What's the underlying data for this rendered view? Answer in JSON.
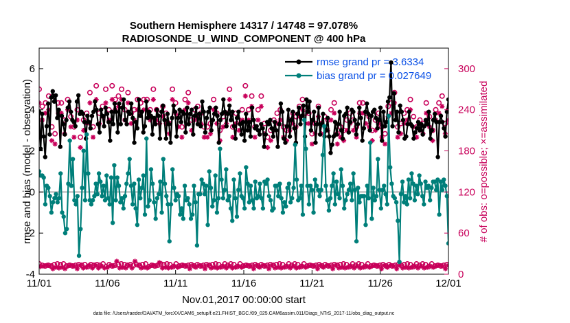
{
  "chart_data": {
    "type": "line",
    "title_line1": "Southern Hemisphere 14317 / 14748 = 97.078%",
    "title_line2": "RADIOSONDE_U_WIND_COMPONENT @ 400 hPa",
    "xlabel": "Nov.01,2017 00:00:00 start",
    "ylabel_left": "rmse and bias (model - observation)",
    "ylabel_right": "# of obs: o=possible; ×=assimilated",
    "footer": "data file: /Users/raeder/DAI/ATM_forcXX/CAM6_setup/f.e21.FHIST_BGC.f09_025.CAM6assim.011/Diags_NTrS_2017-11/obs_diag_output.nc",
    "x_range_days": [
      0,
      30
    ],
    "x_ticks": [
      0,
      5,
      10,
      15,
      20,
      25,
      30
    ],
    "x_tick_labels": [
      "11/01",
      "11/06",
      "11/11",
      "11/16",
      "11/21",
      "11/26",
      "12/01"
    ],
    "ylim_left": [
      -4,
      7
    ],
    "y_ticks_left": [
      -4,
      -2,
      0,
      2,
      4,
      6
    ],
    "y_tick_labels_left": [
      "-4",
      "-2",
      "0",
      "2",
      "4",
      "6"
    ],
    "ylim_right": [
      0,
      330
    ],
    "y_ticks_right": [
      0,
      60,
      120,
      180,
      240,
      300
    ],
    "y_tick_labels_right": [
      "0",
      "60",
      "120",
      "180",
      "240",
      "300"
    ],
    "zero_line": 0,
    "x_step_days": 0.25,
    "series": [
      {
        "name": "rmse",
        "legend": "rmse grand pr = 3.6334",
        "color": "#000000",
        "marker": "circle",
        "values": [
          3.9,
          2.1,
          3.8,
          2.7,
          1.7,
          3.2,
          4.3,
          2.8,
          4.6,
          4.9,
          4.4,
          4.7,
          3.6,
          4.0,
          2.2,
          3.7,
          3.3,
          2.8,
          3.5,
          4.1,
          4.4,
          3.9,
          3.5,
          3.4,
          3.2,
          4.4,
          4.7,
          3.8,
          3.9,
          3.8,
          3.4,
          2.6,
          3.7,
          3.4,
          3.1,
          3.7,
          3.9,
          4.4,
          4.0,
          3.3,
          2.9,
          4.0,
          3.7,
          3.2,
          4.1,
          3.8,
          3.4,
          2.5,
          3.9,
          3.3,
          4.3,
          3.9,
          2.9,
          4.3,
          3.3,
          4.1,
          4.5,
          3.5,
          3.3,
          3.9,
          3.8,
          4.3,
          3.6,
          2.4,
          3.4,
          3.1,
          4.5,
          3.7,
          3.9,
          2.9,
          3.2,
          4.4,
          3.6,
          3.9,
          3.7,
          2.8,
          3.6,
          3.3,
          4.0,
          3.7,
          2.6,
          3.9,
          4.2,
          3.5,
          2.6,
          3.8,
          3.3,
          2.4,
          3.6,
          4.2,
          3.9,
          2.7,
          3.6,
          4.0,
          3.4,
          3.9,
          3.8,
          2.9,
          4.1,
          3.3,
          3.8,
          4.0,
          2.8,
          3.7,
          4.1,
          3.3,
          3.8,
          3.2,
          4.4,
          3.9,
          2.9,
          3.6,
          3.9,
          4.1,
          3.0,
          3.5,
          3.8,
          4.1,
          3.7,
          2.4,
          3.5,
          3.8,
          4.5,
          3.9,
          3.2,
          3.8,
          4.2,
          3.5,
          3.9,
          3.2,
          2.6,
          3.6,
          3.9,
          3.3,
          2.8,
          3.4,
          2.5,
          3.8,
          3.0,
          3.4,
          2.7,
          4.1,
          3.5,
          3.1,
          3.2,
          3.0,
          2.8,
          3.3,
          3.1,
          2.2,
          2.8,
          3.4,
          3.3,
          3.5,
          3.1,
          2.7,
          3.4,
          3.0,
          2.2,
          3.3,
          4.3,
          3.9,
          2.6,
          2.4,
          3.2,
          4.0,
          2.7,
          3.5,
          3.9,
          3.1,
          2.4,
          3.8,
          4.1,
          3.3,
          3.7,
          4.2,
          2.7,
          4.5,
          3.9,
          4.4,
          3.0,
          3.5,
          3.9,
          2.4,
          3.3,
          4.1,
          2.8,
          3.3,
          3.8,
          2.7,
          3.0,
          3.6,
          2.7,
          1.9,
          2.3,
          2.7,
          3.4,
          2.8,
          3.3,
          3.9,
          3.0,
          2.6,
          3.7,
          3.8,
          4.1,
          2.9,
          3.4,
          4.0,
          3.9,
          3.5,
          2.8,
          3.3,
          4.1,
          3.6,
          2.5,
          3.1,
          3.9,
          4.3,
          3.8,
          3.0,
          3.7,
          3.9,
          4.0,
          3.6,
          3.1,
          3.5,
          4.1,
          2.5,
          3.9,
          3.2,
          3.4,
          4.4,
          4.6,
          6.3,
          3.2,
          4.8,
          3.5,
          3.9,
          2.9,
          4.2,
          3.9,
          3.5,
          2.6,
          2.7,
          3.3,
          3.9,
          3.3,
          3.2,
          2.6,
          2.9,
          3.1,
          3.4,
          3.0,
          3.3,
          2.8,
          3.2,
          3.5,
          3.3,
          3.9,
          2.6,
          3.0,
          3.5,
          3.8,
          3.4,
          1.7,
          3.4,
          3.7,
          3.4,
          3.1,
          2.7,
          3.9,
          4.5
        ]
      },
      {
        "name": "bias",
        "legend": "bias grand pr = 0.027649",
        "color": "#007f7a",
        "marker": "circle",
        "values": [
          1.0,
          0.8,
          0.8,
          0.7,
          -0.6,
          0.3,
          0.2,
          -0.2,
          -1.0,
          -0.5,
          -0.3,
          -0.1,
          -0.5,
          -0.3,
          0.9,
          -1.0,
          -1.2,
          -2.0,
          -1.8,
          0.4,
          2.5,
          0.3,
          1.6,
          -0.4,
          -0.6,
          -0.2,
          -3.1,
          -1.8,
          0.2,
          2.0,
          -0.4,
          2.8,
          0.9,
          -0.4,
          -0.6,
          -0.4,
          -0.2,
          0.4,
          -0.1,
          0.9,
          0.5,
          -0.2,
          0.3,
          -0.4,
          0.8,
          -0.3,
          -0.6,
          0.7,
          -1.5,
          1.3,
          -0.4,
          0.7,
          0.3,
          -0.5,
          -0.3,
          -0.8,
          -0.2,
          0.4,
          0.9,
          1.6,
          0.3,
          -0.6,
          0.4,
          -0.8,
          -1.6,
          0.6,
          -0.3,
          0.2,
          0.8,
          -1.1,
          2.6,
          -0.7,
          -0.4,
          1.1,
          0.4,
          -0.5,
          -1.3,
          -0.3,
          -0.1,
          0.5,
          -1.0,
          1.6,
          0.4,
          -0.2,
          -0.6,
          -2.4,
          -0.6,
          1.1,
          0.2,
          -0.4,
          -0.1,
          -0.2,
          -1.1,
          -0.8,
          -1.3,
          0.3,
          -0.4,
          -0.3,
          -0.6,
          -1.3,
          -1.1,
          0.3,
          -0.5,
          -2.6,
          -0.1,
          -0.1,
          0.6,
          0.4,
          -0.1,
          0.3,
          -1.6,
          1.0,
          0.2,
          -0.7,
          -0.4,
          0.8,
          -1.0,
          -0.3,
          2.1,
          0.6,
          -0.3,
          0.1,
          1.1,
          -0.4,
          -0.2,
          -0.8,
          -1.4,
          0.6,
          -0.3,
          -1.2,
          0.1,
          0.9,
          -0.2,
          -0.3,
          -0.8,
          1.2,
          0.4,
          -0.5,
          0.3,
          -0.4,
          -0.8,
          0.5,
          -0.3,
          -0.2,
          0.4,
          -0.3,
          -0.8,
          0.5,
          0.4,
          0.6,
          -0.2,
          -0.4,
          -0.9,
          -0.8,
          0.3,
          0.3,
          -0.2,
          0.4,
          -0.3,
          -1.0,
          -0.5,
          -0.7,
          0.2,
          0.4,
          -0.5,
          -0.3,
          0.2,
          2.3,
          0.6,
          -0.4,
          -0.3,
          0.3,
          -1.1,
          3.5,
          2.1,
          0.3,
          -0.6,
          0.3,
          0.1,
          -1.0,
          0.6,
          0.3,
          0.1,
          -0.2,
          0.1,
          1.8,
          3.2,
          0.3,
          -0.4,
          -0.9,
          -0.3,
          0.3,
          0.9,
          -0.6,
          0.5,
          -0.1,
          -0.3,
          1.1,
          0.3,
          -0.8,
          -0.4,
          -0.1,
          0.1,
          0.4,
          -0.4,
          0.9,
          0.1,
          -2.4,
          0.2,
          -0.5,
          -0.2,
          -0.2,
          -0.2,
          -1.6,
          0.3,
          -0.3,
          2.4,
          -1.3,
          0.2,
          -0.4,
          -0.2,
          1.6,
          0.1,
          -0.8,
          0.1,
          0.3,
          -0.1,
          -0.6,
          3.7,
          1.2,
          0.4,
          -0.2,
          -0.3,
          -0.5,
          -1.4,
          -3.4,
          -0.1,
          0.5,
          -0.5,
          -0.2,
          -0.6,
          0.6,
          -0.3,
          0.9,
          0.4,
          -0.4,
          0.3,
          -0.1,
          0.8,
          0.4,
          -0.2,
          -0.6,
          0.5,
          0.2,
          0.3,
          -0.4,
          0.2,
          0.5,
          0.5,
          0.1,
          0.6,
          -1.1,
          0.5,
          0.1,
          0.6,
          0.3,
          -0.2,
          -2.5
        ]
      }
    ],
    "obs_possible": [
      15,
      14,
      13,
      14,
      12,
      15,
      13,
      14,
      12,
      11,
      14,
      13,
      15,
      12,
      14,
      13,
      15,
      11,
      12,
      14,
      13,
      15,
      12,
      14,
      13,
      11,
      14,
      15,
      13,
      12,
      14,
      13,
      11,
      15,
      14,
      12,
      13,
      15,
      14,
      12,
      13,
      14,
      15,
      12,
      11,
      13,
      14,
      15,
      12,
      14,
      13,
      22,
      14,
      12,
      15,
      13,
      14,
      12,
      13,
      15,
      14,
      12,
      13,
      22,
      14,
      15,
      13,
      12,
      14,
      13,
      15,
      12,
      11,
      14,
      13,
      15,
      12,
      14,
      13,
      20,
      15,
      12,
      14,
      13,
      15,
      12,
      14,
      13,
      11,
      14,
      15,
      13,
      12,
      14,
      13,
      15,
      12,
      14,
      13,
      11,
      14,
      15,
      12,
      13,
      14,
      15,
      12,
      14,
      13,
      11,
      14,
      15,
      13,
      12,
      14,
      13,
      15,
      12,
      14,
      13,
      11,
      14,
      15,
      12,
      13,
      14,
      15,
      12,
      14,
      13,
      11,
      14,
      15,
      13,
      12,
      14,
      13,
      15,
      12,
      14,
      13,
      11,
      14,
      15,
      12,
      13,
      14,
      15,
      12,
      14,
      13,
      11,
      14,
      15,
      13,
      12,
      14,
      13,
      15,
      12,
      14,
      13,
      11,
      14,
      15,
      12,
      13,
      14,
      15,
      12,
      14,
      13,
      11,
      14,
      15,
      13,
      12,
      14,
      13,
      15,
      12,
      14,
      13,
      11,
      14,
      15,
      12,
      13,
      14,
      15,
      12,
      14,
      13,
      11,
      14,
      15,
      13,
      12,
      14,
      13,
      15,
      12,
      14,
      13,
      11,
      14,
      15,
      12,
      13,
      14,
      15,
      12,
      14,
      13,
      11,
      14,
      15,
      13,
      12,
      14,
      13,
      15,
      12,
      14,
      13,
      11,
      14,
      15,
      12,
      13,
      14,
      15,
      12,
      14,
      13,
      11,
      14,
      15,
      13,
      12,
      14,
      13,
      15,
      12,
      14,
      13,
      11,
      14,
      15,
      12,
      13,
      14,
      15,
      12,
      14,
      13,
      11,
      14,
      15,
      13,
      12,
      14,
      13,
      15,
      12,
      14,
      13,
      11,
      14,
      15
    ],
    "obs_assimilated": [
      12,
      11,
      10,
      12,
      9,
      13,
      10,
      12,
      9,
      8,
      12,
      10,
      13,
      9,
      12,
      10,
      13,
      8,
      9,
      12,
      10,
      13,
      9,
      12,
      10,
      8,
      12,
      13,
      10,
      9,
      12,
      10,
      8,
      13,
      12,
      9,
      10,
      13,
      12,
      9,
      10,
      12,
      13,
      9,
      8,
      10,
      12,
      13,
      9,
      12,
      10,
      19,
      12,
      9,
      13,
      10,
      12,
      9,
      10,
      13,
      12,
      9,
      10,
      19,
      12,
      13,
      10,
      9,
      12,
      10,
      13,
      9,
      8,
      12,
      10,
      13,
      9,
      12,
      10,
      17,
      13,
      9,
      12,
      10,
      13,
      9,
      12,
      10,
      8,
      12,
      13,
      10,
      9,
      12,
      10,
      13,
      9,
      12,
      10,
      8,
      12,
      13,
      9,
      10,
      12,
      13,
      9,
      12,
      10,
      8,
      12,
      13,
      10,
      9,
      12,
      10,
      13,
      9,
      12,
      10,
      8,
      12,
      13,
      9,
      10,
      12,
      13,
      9,
      12,
      10,
      8,
      12,
      13,
      10,
      9,
      12,
      10,
      13,
      9,
      12,
      10,
      8,
      12,
      13,
      9,
      10,
      12,
      13,
      9,
      12,
      10,
      8,
      12,
      13,
      10,
      9,
      12,
      10,
      13,
      9,
      12,
      10,
      8,
      12,
      13,
      9,
      10,
      12,
      13,
      9,
      12,
      10,
      8,
      12,
      13,
      10,
      9,
      12,
      10,
      13,
      9,
      12,
      10,
      8,
      12,
      13,
      9,
      10,
      12,
      13,
      9,
      12,
      10,
      8,
      12,
      13,
      10,
      9,
      12,
      10,
      13,
      9,
      12,
      10,
      8,
      12,
      13,
      9,
      10,
      12,
      13,
      9,
      12,
      10,
      8,
      12,
      13,
      10,
      9,
      12,
      10,
      13,
      9,
      12,
      10,
      8,
      12,
      13,
      9,
      10,
      12,
      13,
      9,
      12,
      10,
      8,
      12,
      13,
      10,
      9,
      12,
      10,
      13,
      9,
      12,
      10,
      8,
      12,
      13,
      9,
      10,
      12,
      13,
      9,
      12,
      10,
      8,
      12,
      13,
      10,
      9,
      12,
      10,
      13,
      9,
      12,
      10,
      8,
      12,
      13
    ],
    "obs_possible_upper": [
      270,
      245,
      250,
      260,
      215,
      205,
      250,
      250,
      225,
      255,
      230,
      215,
      240,
      200,
      225,
      235,
      265,
      215,
      275,
      235,
      245,
      270,
      240,
      275,
      255,
      260,
      270,
      240,
      265,
      235,
      240,
      255,
      250,
      255,
      255,
      240,
      270,
      240,
      235,
      245,
      235,
      220,
      270,
      250,
      230,
      215,
      255,
      265,
      225,
      240,
      245,
      235,
      215,
      215,
      220,
      255,
      235,
      210,
      230,
      235,
      270,
      215,
      235,
      225,
      240,
      275,
      240,
      260,
      215,
      240,
      260,
      220,
      200,
      210,
      225,
      235,
      240,
      215,
      210,
      225,
      235,
      230,
      245,
      255,
      235,
      235,
      205,
      220,
      245,
      220,
      230,
      225,
      240,
      250,
      205,
      215,
      210,
      225,
      235,
      225,
      215,
      250,
      250,
      235,
      230,
      210,
      225,
      235,
      215,
      205,
      245,
      250,
      265,
      215,
      220,
      235,
      240,
      255,
      230,
      215,
      225,
      220,
      250,
      230,
      210,
      240,
      250,
      260,
      220,
      240
    ],
    "obs_assimilated_upper": [
      250,
      225,
      235,
      240,
      195,
      190,
      235,
      235,
      205,
      240,
      215,
      200,
      225,
      185,
      210,
      220,
      250,
      200,
      255,
      220,
      230,
      250,
      225,
      255,
      240,
      245,
      255,
      225,
      250,
      220,
      225,
      240,
      235,
      240,
      240,
      225,
      255,
      225,
      220,
      230,
      220,
      205,
      255,
      235,
      215,
      200,
      240,
      250,
      210,
      225,
      230,
      220,
      200,
      200,
      205,
      240,
      220,
      195,
      215,
      220,
      255,
      200,
      220,
      210,
      225,
      260,
      225,
      245,
      200,
      225,
      245,
      205,
      185,
      195,
      210,
      220,
      225,
      200,
      195,
      210,
      220,
      215,
      230,
      240,
      220,
      220,
      190,
      205,
      230,
      205,
      215,
      210,
      225,
      235,
      190,
      200,
      195,
      210,
      220,
      210,
      200,
      235,
      235,
      220,
      215,
      195,
      210,
      220,
      200,
      190,
      230,
      235,
      250,
      200,
      205,
      220,
      225,
      240,
      215,
      200,
      210,
      205,
      235,
      215,
      195,
      225,
      235,
      245,
      205,
      225
    ],
    "obs_upper_colors": {
      "possible": "#c8005a",
      "assimilated": "#c8005a"
    }
  }
}
